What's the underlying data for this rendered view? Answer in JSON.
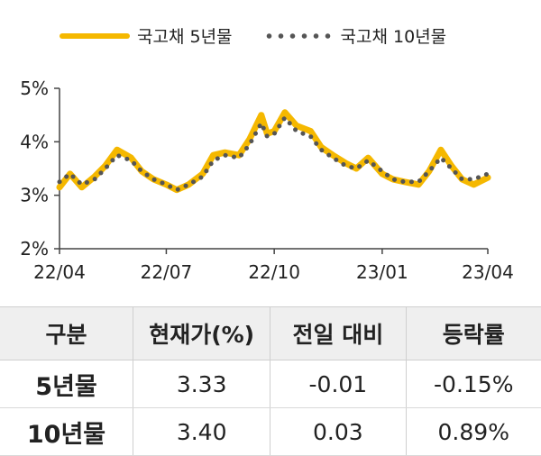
{
  "legend": {
    "series_1": "국고채 5년물",
    "series_2": "국고채 10년물"
  },
  "colors": {
    "series_1": "#F5B800",
    "series_2": "#555555"
  },
  "chart_data": {
    "type": "line",
    "x_ticks": [
      "22/04",
      "22/07",
      "22/10",
      "23/01",
      "23/04"
    ],
    "y_ticks": [
      "2%",
      "3%",
      "4%",
      "5%"
    ],
    "ylim": [
      2,
      5
    ],
    "grid": false,
    "legend_position": "top",
    "series": [
      {
        "name": "국고채 5년물",
        "style": "solid",
        "x": [
          "22/04/01",
          "22/04/10",
          "22/04/20",
          "22/05/01",
          "22/05/10",
          "22/05/20",
          "22/06/01",
          "22/06/10",
          "22/06/20",
          "22/07/01",
          "22/07/10",
          "22/07/20",
          "22/08/01",
          "22/08/10",
          "22/08/20",
          "22/09/01",
          "22/09/10",
          "22/09/20",
          "22/09/25",
          "22/10/01",
          "22/10/10",
          "22/10/20",
          "22/11/01",
          "22/11/10",
          "22/11/20",
          "22/12/01",
          "22/12/10",
          "22/12/20",
          "23/01/01",
          "23/01/10",
          "23/01/20",
          "23/02/01",
          "23/02/10",
          "23/02/20",
          "23/03/01",
          "23/03/10",
          "23/03/20",
          "23/04/01"
        ],
        "values": [
          3.15,
          3.4,
          3.15,
          3.35,
          3.55,
          3.85,
          3.7,
          3.45,
          3.3,
          3.2,
          3.1,
          3.2,
          3.4,
          3.75,
          3.8,
          3.75,
          4.05,
          4.5,
          4.15,
          4.2,
          4.55,
          4.3,
          4.2,
          3.9,
          3.75,
          3.6,
          3.5,
          3.7,
          3.4,
          3.3,
          3.25,
          3.2,
          3.45,
          3.85,
          3.55,
          3.3,
          3.2,
          3.33
        ]
      },
      {
        "name": "국고채 10년물",
        "style": "dotted",
        "x": [
          "22/04/01",
          "22/04/10",
          "22/04/20",
          "22/05/01",
          "22/05/10",
          "22/05/20",
          "22/06/01",
          "22/06/10",
          "22/06/20",
          "22/07/01",
          "22/07/10",
          "22/07/20",
          "22/08/01",
          "22/08/10",
          "22/08/20",
          "22/09/01",
          "22/09/10",
          "22/09/20",
          "22/09/25",
          "22/10/01",
          "22/10/10",
          "22/10/20",
          "22/11/01",
          "22/11/10",
          "22/11/20",
          "22/12/01",
          "22/12/10",
          "22/12/20",
          "23/01/01",
          "23/01/10",
          "23/01/20",
          "23/02/01",
          "23/02/10",
          "23/02/20",
          "23/03/01",
          "23/03/10",
          "23/03/20",
          "23/04/01"
        ],
        "values": [
          3.25,
          3.4,
          3.2,
          3.3,
          3.5,
          3.75,
          3.65,
          3.45,
          3.3,
          3.2,
          3.1,
          3.2,
          3.35,
          3.65,
          3.75,
          3.7,
          3.95,
          4.35,
          4.1,
          4.15,
          4.45,
          4.2,
          4.1,
          3.85,
          3.7,
          3.55,
          3.5,
          3.65,
          3.45,
          3.3,
          3.25,
          3.25,
          3.45,
          3.7,
          3.5,
          3.3,
          3.3,
          3.4
        ]
      }
    ]
  },
  "table": {
    "headers": [
      "구분",
      "현재가(%)",
      "전일 대비",
      "등락률"
    ],
    "rows": [
      [
        "5년물",
        "3.33",
        "-0.01",
        "-0.15%"
      ],
      [
        "10년물",
        "3.40",
        "0.03",
        "0.89%"
      ]
    ]
  }
}
